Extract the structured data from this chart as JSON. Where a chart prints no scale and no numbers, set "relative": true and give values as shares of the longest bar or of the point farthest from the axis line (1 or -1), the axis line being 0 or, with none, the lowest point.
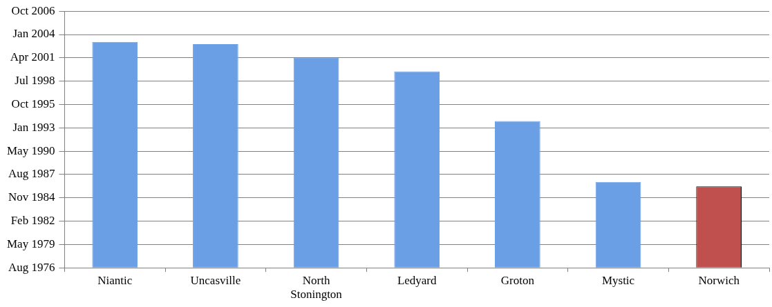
{
  "chart_data": {
    "type": "bar",
    "relative": true,
    "categories": [
      "Niantic",
      "Uncasville",
      "North Stonington",
      "Ledyard",
      "Groton",
      "Mystic",
      "Norwich"
    ],
    "values": [
      1,
      0.99,
      0.93,
      0.87,
      0.65,
      0.38,
      0.36
    ],
    "colors": [
      "#6a9fe6",
      "#6a9fe6",
      "#6a9fe6",
      "#6a9fe6",
      "#6a9fe6",
      "#6a9fe6",
      "#c0504d"
    ],
    "annotations": [
      "Aug 1976",
      "May 1979",
      "Feb 1982",
      "Nov 1984",
      "Aug 1987",
      "May 1990",
      "Jan 1993",
      "Oct 1995",
      "Jul 1998",
      "Apr 2001",
      "Jan 2004",
      "Oct 2006"
    ],
    "grid": "y",
    "legend": false
  }
}
